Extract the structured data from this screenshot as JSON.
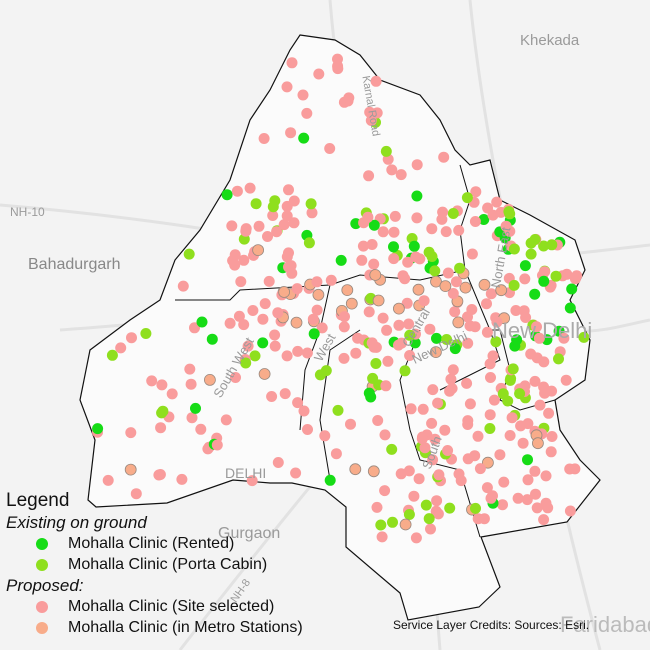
{
  "map_labels": {
    "khekada": "Khekada",
    "nh10": "NH-10",
    "bahadurgarh": "Bahadurgarh",
    "gurgaon": "Gurgaon",
    "delhi": "DELHI",
    "new_delhi_big": "New Delhi",
    "faridabad": "Faridabad",
    "karnal_road": "Karnal Road",
    "north_east": "North East",
    "central": "Central",
    "new_delhi": "New Delhi",
    "south": "South",
    "west": "West",
    "south_west": "South West",
    "nh8": "NH-8"
  },
  "legend": {
    "title": "Legend",
    "existing_heading": "Existing on ground",
    "proposed_heading": "Proposed:",
    "items": [
      {
        "label": "Mohalla Clinic (Rented)",
        "color": "#16dc16"
      },
      {
        "label": "Mohalla Clinic (Porta Cabin)",
        "color": "#8fdf1e"
      },
      {
        "label": "Mohalla Clinic (Site selected)",
        "color": "#f99c9c"
      },
      {
        "label": "Mohalla Clinic (in Metro Stations)",
        "color": "#f8ac8a"
      }
    ]
  },
  "credits": "Service Layer Credits: Sources: Esri."
}
